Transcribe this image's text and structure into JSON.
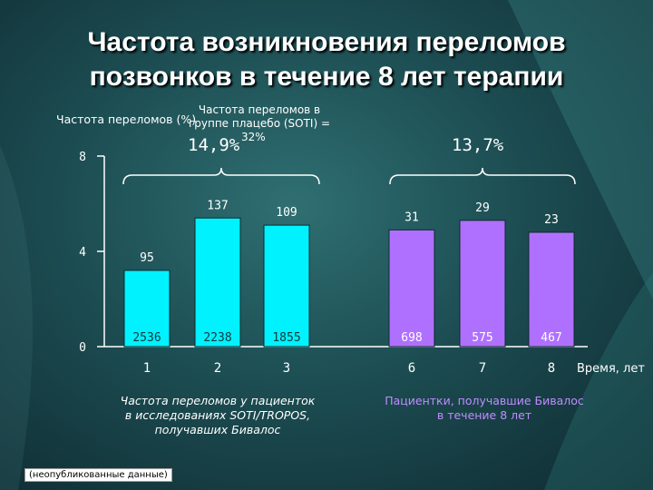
{
  "slide": {
    "title_line1": "Частота возникновения переломов",
    "title_line2": "позвонков в течение 8 лет терапии",
    "placebo_caption_line1": "Частота переломов в",
    "placebo_caption_line2": "группе плацебо (SOTI) =",
    "placebo_value_a": "14,9%",
    "placebo_value_b": "32%",
    "right_group_value": "13,7%",
    "left_group_caption_line1": "Частота переломов у пациенток",
    "left_group_caption_line2": "в исследованиях SOTI/TROPOS,",
    "left_group_caption_line3": "получавших Бивалос",
    "right_group_caption_line1": "Пациентки, получавшие Бивалос",
    "right_group_caption_line2": "в течение 8 лет",
    "footnote": "(неопубликованные данные)",
    "colors": {
      "background": "#1c4d52",
      "cyan_bar": "#00f2ff",
      "purple_bar": "#b070ff",
      "purple_text": "#c08cff",
      "text": "#ffffff"
    }
  },
  "chart_data": {
    "type": "bar",
    "ylabel": "Частота переломов (%)",
    "xlabel": "Время, лет",
    "ylim": [
      0,
      8
    ],
    "yticks": [
      "0",
      "4",
      "8"
    ],
    "categories": [
      "1",
      "2",
      "3",
      "6",
      "7",
      "8"
    ],
    "values": [
      3.2,
      5.4,
      5.1,
      4.9,
      5.3,
      4.8
    ],
    "fracture_counts": [
      "95",
      "137",
      "109",
      "31",
      "29",
      "23"
    ],
    "patient_counts": [
      "2536",
      "2238",
      "1855",
      "698",
      "575",
      "467"
    ],
    "bar_groups": [
      "cyan",
      "cyan",
      "cyan",
      "purple",
      "purple",
      "purple"
    ],
    "grid": false
  }
}
